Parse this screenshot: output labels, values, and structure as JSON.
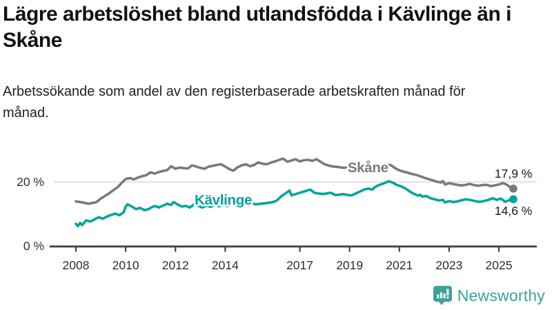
{
  "title": "Lägre arbetslöshet bland utlandsfödda i Kävlinge än i Skåne",
  "subtitle": "Arbetssökande som andel av den registerbaserade arbetskraften månad för månad.",
  "branding": {
    "logo_text": "Newsworthy",
    "logo_icon": "bar-chart-speech-bubble",
    "logo_color": "#3fa19b"
  },
  "chart_data": {
    "type": "line",
    "x_axis": {
      "unit": "year",
      "ticks": [
        2008,
        2010,
        2012,
        2014,
        2017,
        2019,
        2021,
        2023,
        2025
      ],
      "range": [
        2008,
        2025.6
      ]
    },
    "y_axis": {
      "unit": "percent",
      "range": [
        0,
        30
      ],
      "gridlines": [
        20
      ],
      "ticks": [
        {
          "value": 20,
          "label": "20 %"
        },
        {
          "value": 0,
          "label": "0 %"
        }
      ]
    },
    "legend_position": "inline-labels-on-lines",
    "series": [
      {
        "name": "Skåne",
        "color": "#787a7d",
        "end_value": 17.9,
        "end_label": "17,9 %",
        "label_anchor": {
          "x": 2018.92,
          "y": 23.0
        },
        "end_label_anchor": {
          "x": 2024.83,
          "y": 21.3
        },
        "points": [
          [
            2008.0,
            13.9
          ],
          [
            2008.17,
            13.7
          ],
          [
            2008.33,
            13.5
          ],
          [
            2008.5,
            13.2
          ],
          [
            2008.67,
            13.4
          ],
          [
            2008.83,
            13.7
          ],
          [
            2009.0,
            14.8
          ],
          [
            2009.17,
            15.6
          ],
          [
            2009.33,
            16.4
          ],
          [
            2009.5,
            17.4
          ],
          [
            2009.67,
            18.3
          ],
          [
            2009.83,
            19.6
          ],
          [
            2010.0,
            20.9
          ],
          [
            2010.17,
            21.2
          ],
          [
            2010.33,
            20.8
          ],
          [
            2010.5,
            21.4
          ],
          [
            2010.67,
            21.8
          ],
          [
            2010.83,
            22.1
          ],
          [
            2011.0,
            23.0
          ],
          [
            2011.17,
            22.6
          ],
          [
            2011.33,
            23.1
          ],
          [
            2011.5,
            23.4
          ],
          [
            2011.67,
            23.7
          ],
          [
            2011.83,
            24.9
          ],
          [
            2012.0,
            24.1
          ],
          [
            2012.17,
            24.5
          ],
          [
            2012.33,
            24.3
          ],
          [
            2012.5,
            24.2
          ],
          [
            2012.67,
            25.2
          ],
          [
            2012.83,
            24.8
          ],
          [
            2013.0,
            24.4
          ],
          [
            2013.17,
            24.1
          ],
          [
            2013.33,
            24.8
          ],
          [
            2013.5,
            25.0
          ],
          [
            2013.67,
            25.3
          ],
          [
            2013.83,
            25.5
          ],
          [
            2014.0,
            24.8
          ],
          [
            2014.17,
            24.0
          ],
          [
            2014.33,
            23.5
          ],
          [
            2014.5,
            24.6
          ],
          [
            2014.67,
            25.2
          ],
          [
            2014.83,
            25.5
          ],
          [
            2015.0,
            24.9
          ],
          [
            2015.17,
            25.3
          ],
          [
            2015.33,
            26.1
          ],
          [
            2015.5,
            25.7
          ],
          [
            2015.67,
            25.5
          ],
          [
            2015.83,
            26.0
          ],
          [
            2016.0,
            26.4
          ],
          [
            2016.17,
            26.9
          ],
          [
            2016.33,
            27.3
          ],
          [
            2016.5,
            26.3
          ],
          [
            2016.67,
            26.7
          ],
          [
            2016.83,
            27.1
          ],
          [
            2017.0,
            26.4
          ],
          [
            2017.17,
            26.8
          ],
          [
            2017.33,
            26.9
          ],
          [
            2017.5,
            26.6
          ],
          [
            2017.67,
            27.1
          ],
          [
            2017.83,
            26.3
          ],
          [
            2018.0,
            25.5
          ],
          [
            2018.17,
            25.1
          ],
          [
            2018.33,
            24.8
          ],
          [
            2018.5,
            24.7
          ],
          [
            2018.67,
            24.5
          ],
          [
            2018.83,
            24.4
          ],
          [
            2019.0,
            24.3
          ],
          [
            2019.25,
            24.2
          ],
          [
            2019.5,
            24.1
          ],
          [
            2019.75,
            24.2
          ],
          [
            2020.0,
            24.5
          ],
          [
            2020.25,
            25.1
          ],
          [
            2020.5,
            25.4
          ],
          [
            2020.67,
            25.2
          ],
          [
            2020.83,
            24.3
          ],
          [
            2021.0,
            23.6
          ],
          [
            2021.17,
            23.2
          ],
          [
            2021.33,
            22.9
          ],
          [
            2021.5,
            22.5
          ],
          [
            2021.67,
            22.2
          ],
          [
            2021.83,
            21.8
          ],
          [
            2022.0,
            21.3
          ],
          [
            2022.17,
            20.9
          ],
          [
            2022.33,
            20.5
          ],
          [
            2022.5,
            20.1
          ],
          [
            2022.67,
            19.8
          ],
          [
            2022.75,
            20.3
          ],
          [
            2022.83,
            19.2
          ],
          [
            2023.0,
            19.6
          ],
          [
            2023.17,
            19.3
          ],
          [
            2023.33,
            19.1
          ],
          [
            2023.5,
            18.9
          ],
          [
            2023.67,
            19.1
          ],
          [
            2023.83,
            19.4
          ],
          [
            2024.0,
            19.0
          ],
          [
            2024.17,
            18.8
          ],
          [
            2024.33,
            19.0
          ],
          [
            2024.5,
            19.1
          ],
          [
            2024.67,
            18.7
          ],
          [
            2024.83,
            18.9
          ],
          [
            2025.0,
            19.2
          ],
          [
            2025.17,
            19.6
          ],
          [
            2025.33,
            19.1
          ],
          [
            2025.42,
            18.5
          ],
          [
            2025.58,
            17.9
          ]
        ]
      },
      {
        "name": "Kävlinge",
        "color": "#00a49c",
        "end_value": 14.6,
        "end_label": "14,6 %",
        "label_anchor": {
          "x": 2012.77,
          "y": 12.9
        },
        "end_label_anchor": {
          "x": 2024.83,
          "y": 9.7
        },
        "points": [
          [
            2008.0,
            6.9
          ],
          [
            2008.08,
            6.2
          ],
          [
            2008.17,
            7.2
          ],
          [
            2008.25,
            6.5
          ],
          [
            2008.42,
            8.0
          ],
          [
            2008.58,
            7.6
          ],
          [
            2008.75,
            8.3
          ],
          [
            2008.92,
            9.0
          ],
          [
            2009.08,
            8.5
          ],
          [
            2009.25,
            9.2
          ],
          [
            2009.42,
            9.7
          ],
          [
            2009.58,
            10.1
          ],
          [
            2009.75,
            9.6
          ],
          [
            2009.92,
            10.5
          ],
          [
            2010.0,
            12.3
          ],
          [
            2010.08,
            13.0
          ],
          [
            2010.25,
            12.3
          ],
          [
            2010.42,
            11.5
          ],
          [
            2010.58,
            11.9
          ],
          [
            2010.75,
            11.2
          ],
          [
            2010.92,
            11.5
          ],
          [
            2011.0,
            11.9
          ],
          [
            2011.17,
            12.5
          ],
          [
            2011.33,
            12.0
          ],
          [
            2011.5,
            12.6
          ],
          [
            2011.67,
            13.2
          ],
          [
            2011.83,
            12.8
          ],
          [
            2011.92,
            13.7
          ],
          [
            2012.08,
            13.0
          ],
          [
            2012.25,
            12.3
          ],
          [
            2012.42,
            12.5
          ],
          [
            2012.58,
            12.0
          ],
          [
            2012.75,
            13.0
          ],
          [
            2012.92,
            12.5
          ],
          [
            2013.08,
            12.0
          ],
          [
            2013.25,
            12.6
          ],
          [
            2013.42,
            12.2
          ],
          [
            2013.58,
            12.8
          ],
          [
            2013.75,
            12.4
          ],
          [
            2013.92,
            12.9
          ],
          [
            2014.08,
            12.5
          ],
          [
            2014.25,
            13.1
          ],
          [
            2014.42,
            12.7
          ],
          [
            2014.58,
            13.2
          ],
          [
            2014.75,
            12.8
          ],
          [
            2014.92,
            13.4
          ],
          [
            2015.08,
            13.3
          ],
          [
            2015.25,
            13.0
          ],
          [
            2015.42,
            13.2
          ],
          [
            2015.58,
            13.3
          ],
          [
            2015.75,
            13.5
          ],
          [
            2015.92,
            13.7
          ],
          [
            2016.08,
            14.2
          ],
          [
            2016.25,
            15.5
          ],
          [
            2016.42,
            16.4
          ],
          [
            2016.58,
            17.3
          ],
          [
            2016.67,
            15.8
          ],
          [
            2016.83,
            16.2
          ],
          [
            2017.0,
            16.6
          ],
          [
            2017.17,
            17.0
          ],
          [
            2017.33,
            17.4
          ],
          [
            2017.42,
            17.6
          ],
          [
            2017.58,
            16.6
          ],
          [
            2017.75,
            16.4
          ],
          [
            2017.92,
            16.2
          ],
          [
            2018.08,
            16.4
          ],
          [
            2018.25,
            16.6
          ],
          [
            2018.42,
            15.9
          ],
          [
            2018.58,
            16.0
          ],
          [
            2018.75,
            16.2
          ],
          [
            2018.92,
            15.9
          ],
          [
            2019.08,
            15.8
          ],
          [
            2019.25,
            16.4
          ],
          [
            2019.42,
            17.0
          ],
          [
            2019.58,
            17.6
          ],
          [
            2019.75,
            17.9
          ],
          [
            2019.92,
            17.6
          ],
          [
            2020.0,
            18.3
          ],
          [
            2020.17,
            19.0
          ],
          [
            2020.33,
            19.4
          ],
          [
            2020.5,
            20.0
          ],
          [
            2020.58,
            20.2
          ],
          [
            2020.75,
            19.7
          ],
          [
            2020.92,
            19.0
          ],
          [
            2021.08,
            18.6
          ],
          [
            2021.25,
            17.9
          ],
          [
            2021.42,
            17.0
          ],
          [
            2021.58,
            16.3
          ],
          [
            2021.75,
            15.7
          ],
          [
            2021.83,
            16.0
          ],
          [
            2021.92,
            15.4
          ],
          [
            2022.08,
            15.6
          ],
          [
            2022.25,
            14.9
          ],
          [
            2022.42,
            14.6
          ],
          [
            2022.58,
            14.2
          ],
          [
            2022.75,
            14.4
          ],
          [
            2022.83,
            13.6
          ],
          [
            2023.0,
            14.0
          ],
          [
            2023.17,
            13.7
          ],
          [
            2023.33,
            13.9
          ],
          [
            2023.5,
            14.3
          ],
          [
            2023.67,
            14.6
          ],
          [
            2023.83,
            14.4
          ],
          [
            2024.0,
            14.1
          ],
          [
            2024.17,
            13.8
          ],
          [
            2024.33,
            13.9
          ],
          [
            2024.58,
            14.4
          ],
          [
            2024.75,
            14.9
          ],
          [
            2024.92,
            14.4
          ],
          [
            2025.08,
            14.8
          ],
          [
            2025.25,
            13.8
          ],
          [
            2025.42,
            14.3
          ],
          [
            2025.58,
            14.6
          ]
        ]
      }
    ]
  }
}
